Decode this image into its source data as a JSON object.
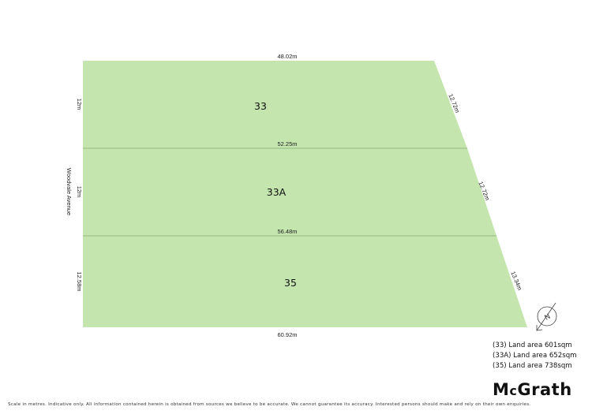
{
  "plan": {
    "street": "Woodvale Avenue",
    "lots": [
      {
        "label": "33",
        "area": "(33) Land area 601sqm",
        "frontage": "12m",
        "rear": "12.72m",
        "top": "48.02m"
      },
      {
        "label": "33A",
        "area": "(33A) Land area 652sqm",
        "frontage": "12m",
        "rear": "12.72m",
        "top": "52.25m"
      },
      {
        "label": "35",
        "area": "(35) Land area 738sqm",
        "frontage": "12.58m",
        "rear": "13.34m",
        "top": "56.48m"
      }
    ],
    "bottom": "60.92m",
    "north": "N",
    "fill_color": "#c4e5ad"
  },
  "footer": {
    "disclaimer": "Scale in metres. Indicative only. All information contained herein is obtained from sources we believe to be accurate. We cannot guarantee its accuracy. Interested persons should make and rely on their own enquiries."
  },
  "brand": {
    "logo_m": "M",
    "logo_c": "c",
    "logo_rest": "Grath"
  }
}
